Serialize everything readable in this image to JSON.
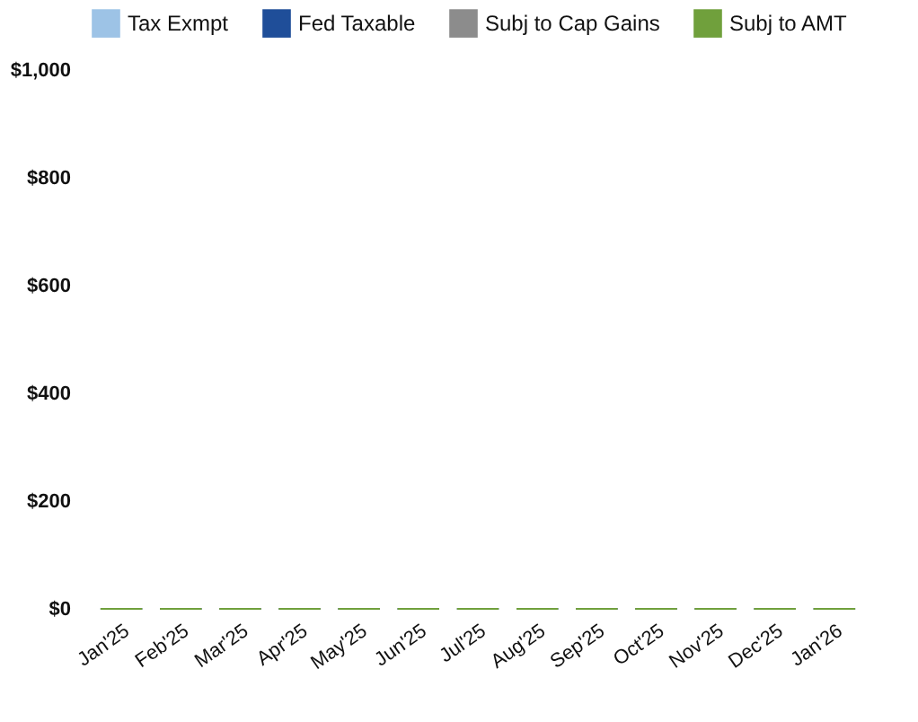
{
  "chart_data": {
    "type": "bar",
    "categories": [
      "Jan'25",
      "Feb'25",
      "Mar'25",
      "Apr'25",
      "May'25",
      "Jun'25",
      "Jul'25",
      "Aug'25",
      "Sep'25",
      "Oct'25",
      "Nov'25",
      "Dec'25",
      "Jan'26"
    ],
    "series": [
      {
        "name": "Tax Exmpt",
        "color": "#9dc3e6",
        "values": [
          0,
          0,
          0,
          0,
          0,
          0,
          0,
          0,
          0,
          0,
          0,
          0,
          0
        ]
      },
      {
        "name": "Fed Taxable",
        "color": "#1f4e99",
        "values": [
          0,
          0,
          0,
          0,
          0,
          0,
          0,
          0,
          0,
          0,
          0,
          0,
          0
        ]
      },
      {
        "name": "Subj to Cap Gains",
        "color": "#8c8c8c",
        "values": [
          0,
          0,
          0,
          0,
          0,
          0,
          0,
          0,
          0,
          0,
          0,
          0,
          0
        ]
      },
      {
        "name": "Subj to AMT",
        "color": "#70a03c",
        "values": [
          0,
          0,
          0,
          0,
          0,
          0,
          0,
          0,
          0,
          0,
          0,
          0,
          0
        ]
      }
    ],
    "ylim": [
      0,
      1000
    ],
    "yticks": [
      {
        "value": 0,
        "label": "$0"
      },
      {
        "value": 200,
        "label": "$200"
      },
      {
        "value": 400,
        "label": "$400"
      },
      {
        "value": 600,
        "label": "$600"
      },
      {
        "value": 800,
        "label": "$800"
      },
      {
        "value": 1000,
        "label": "$1,000"
      }
    ],
    "grid": false,
    "legend": "top"
  }
}
